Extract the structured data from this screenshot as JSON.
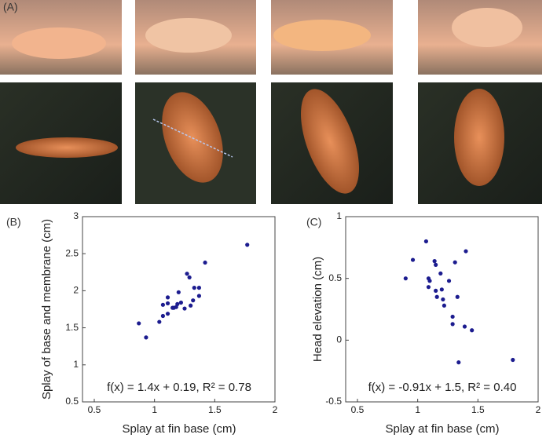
{
  "figure": {
    "panel_a_label": "(A)"
  },
  "chart_data": [
    {
      "type": "scatter",
      "panel_label": "(B)",
      "x_label": "Splay at fin base (cm)",
      "y_label": "Splay of base and membrane (cm)",
      "annotation": "f(x) = 1.4x + 0.19, R² = 0.78",
      "color": "#1c1c8f",
      "x": [
        0.87,
        0.93,
        1.04,
        1.07,
        1.07,
        1.11,
        1.11,
        1.11,
        1.15,
        1.16,
        1.18,
        1.19,
        1.2,
        1.22,
        1.25,
        1.27,
        1.29,
        1.3,
        1.32,
        1.33,
        1.37,
        1.37,
        1.42,
        1.77
      ],
      "values": [
        1.56,
        1.37,
        1.58,
        1.66,
        1.81,
        1.83,
        1.69,
        1.91,
        1.77,
        1.77,
        1.78,
        1.82,
        1.98,
        1.84,
        1.76,
        2.23,
        2.18,
        1.8,
        1.87,
        2.04,
        1.93,
        2.04,
        2.38,
        2.62
      ],
      "xlim": [
        0.5,
        2
      ],
      "ylim": [
        0.5,
        3
      ],
      "xticks": [
        0.5,
        1,
        1.5,
        2
      ],
      "yticks": [
        0.5,
        1,
        1.5,
        2,
        2.5,
        3
      ]
    },
    {
      "type": "scatter",
      "panel_label": "(C)",
      "x_label": "Splay at fin base (cm)",
      "y_label": "Head elevation (cm)",
      "annotation": "f(x) = -0.91x + 1.5, R² = 0.40",
      "color": "#1c1c8f",
      "x": [
        0.9,
        0.96,
        1.07,
        1.09,
        1.09,
        1.1,
        1.14,
        1.15,
        1.15,
        1.16,
        1.19,
        1.2,
        1.21,
        1.22,
        1.26,
        1.29,
        1.29,
        1.31,
        1.33,
        1.34,
        1.39,
        1.4,
        1.45,
        1.79
      ],
      "values": [
        0.5,
        0.65,
        0.8,
        0.5,
        0.43,
        0.48,
        0.64,
        0.61,
        0.4,
        0.35,
        0.54,
        0.41,
        0.33,
        0.28,
        0.48,
        0.19,
        0.13,
        0.63,
        0.35,
        -0.18,
        0.11,
        0.72,
        0.08,
        -0.16
      ],
      "xlim": [
        0.5,
        2
      ],
      "ylim": [
        -0.5,
        1
      ],
      "xticks": [
        0.5,
        1,
        1.5,
        2
      ],
      "yticks": [
        -0.5,
        0,
        0.5,
        1
      ]
    }
  ]
}
